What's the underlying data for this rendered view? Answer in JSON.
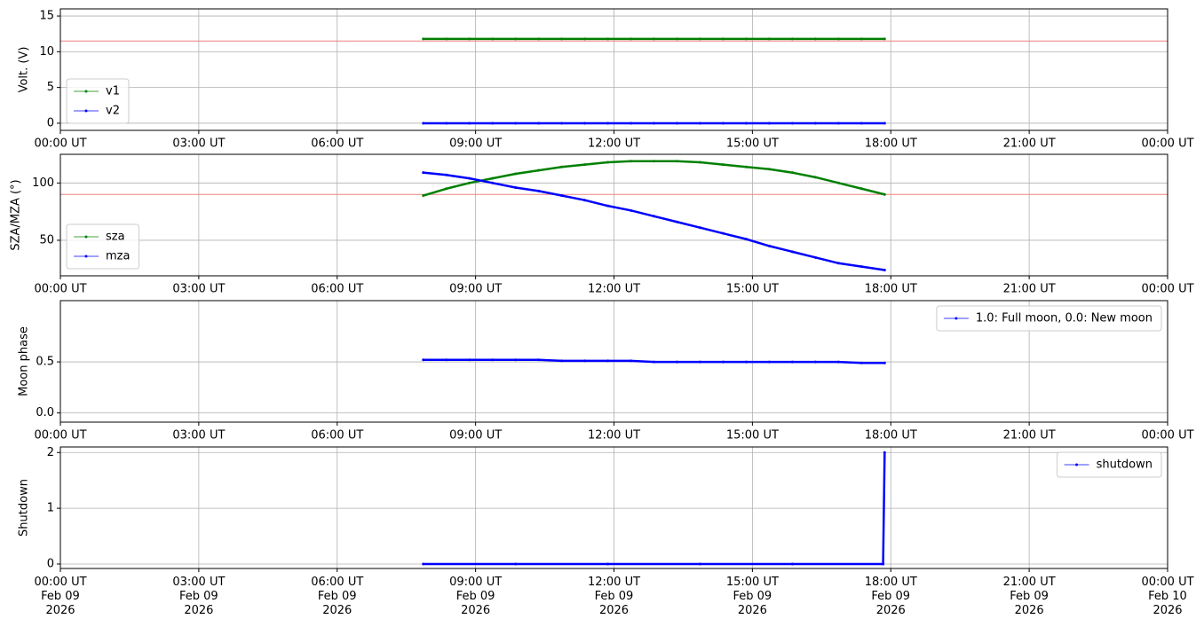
{
  "chart_data": [
    {
      "type": "line",
      "ylabel": "Volt. (V)",
      "x": [
        "2026-02-09T07:52",
        "2026-02-09T08:22",
        "2026-02-09T08:52",
        "2026-02-09T09:22",
        "2026-02-09T09:52",
        "2026-02-09T10:22",
        "2026-02-09T10:52",
        "2026-02-09T11:22",
        "2026-02-09T11:52",
        "2026-02-09T12:22",
        "2026-02-09T12:52",
        "2026-02-09T13:22",
        "2026-02-09T13:52",
        "2026-02-09T14:22",
        "2026-02-09T14:52",
        "2026-02-09T15:22",
        "2026-02-09T15:52",
        "2026-02-09T16:22",
        "2026-02-09T16:52",
        "2026-02-09T17:22",
        "2026-02-09T17:52"
      ],
      "series": [
        {
          "name": "v1",
          "color": "#008000",
          "values": [
            11.8,
            11.8,
            11.8,
            11.8,
            11.8,
            11.8,
            11.8,
            11.8,
            11.8,
            11.8,
            11.8,
            11.8,
            11.8,
            11.8,
            11.8,
            11.8,
            11.8,
            11.8,
            11.8,
            11.8,
            11.8
          ]
        },
        {
          "name": "v2",
          "color": "#0000ff",
          "values": [
            0,
            0,
            0,
            0,
            0,
            0,
            0,
            0,
            0,
            0,
            0,
            0,
            0,
            0,
            0,
            0,
            0,
            0,
            0,
            0,
            0
          ]
        }
      ],
      "hline": 11.5,
      "hline_color": "#f08080",
      "xlim": [
        "2026-02-09T00:00",
        "2026-02-10T00:00"
      ],
      "xticks": [
        {
          "value": "2026-02-09T00:00",
          "label": "00:00 UT"
        },
        {
          "value": "2026-02-09T03:00",
          "label": "03:00 UT"
        },
        {
          "value": "2026-02-09T06:00",
          "label": "06:00 UT"
        },
        {
          "value": "2026-02-09T09:00",
          "label": "09:00 UT"
        },
        {
          "value": "2026-02-09T12:00",
          "label": "12:00 UT"
        },
        {
          "value": "2026-02-09T15:00",
          "label": "15:00 UT"
        },
        {
          "value": "2026-02-09T18:00",
          "label": "18:00 UT"
        },
        {
          "value": "2026-02-09T21:00",
          "label": "21:00 UT"
        },
        {
          "value": "2026-02-10T00:00",
          "label": "00:00 UT"
        }
      ],
      "ylim": [
        -1,
        16
      ],
      "yticks": [
        0,
        5,
        10,
        15
      ],
      "grid": true,
      "legend": "lower left"
    },
    {
      "type": "line",
      "ylabel": "SZA/MZA (°)",
      "x": [
        "2026-02-09T07:52",
        "2026-02-09T08:22",
        "2026-02-09T08:52",
        "2026-02-09T09:22",
        "2026-02-09T09:52",
        "2026-02-09T10:22",
        "2026-02-09T10:52",
        "2026-02-09T11:22",
        "2026-02-09T11:52",
        "2026-02-09T12:22",
        "2026-02-09T12:52",
        "2026-02-09T13:22",
        "2026-02-09T13:52",
        "2026-02-09T14:22",
        "2026-02-09T14:52",
        "2026-02-09T15:22",
        "2026-02-09T15:52",
        "2026-02-09T16:22",
        "2026-02-09T16:52",
        "2026-02-09T17:22",
        "2026-02-09T17:52"
      ],
      "series": [
        {
          "name": "sza",
          "color": "#008000",
          "values": [
            89,
            95,
            100,
            104,
            108,
            111,
            114,
            116,
            118,
            119,
            119,
            119,
            118,
            116,
            114,
            112,
            109,
            105,
            100,
            95,
            90
          ]
        },
        {
          "name": "mza",
          "color": "#0000ff",
          "values": [
            109,
            107,
            104,
            100,
            96,
            93,
            89,
            85,
            80,
            76,
            71,
            66,
            61,
            56,
            51,
            45,
            40,
            35,
            30,
            27,
            24
          ]
        }
      ],
      "hline": 90,
      "hline_color": "#f08080",
      "xlim": [
        "2026-02-09T00:00",
        "2026-02-10T00:00"
      ],
      "xticks": [
        {
          "value": "2026-02-09T00:00",
          "label": "00:00 UT"
        },
        {
          "value": "2026-02-09T03:00",
          "label": "03:00 UT"
        },
        {
          "value": "2026-02-09T06:00",
          "label": "06:00 UT"
        },
        {
          "value": "2026-02-09T09:00",
          "label": "09:00 UT"
        },
        {
          "value": "2026-02-09T12:00",
          "label": "12:00 UT"
        },
        {
          "value": "2026-02-09T15:00",
          "label": "15:00 UT"
        },
        {
          "value": "2026-02-09T18:00",
          "label": "18:00 UT"
        },
        {
          "value": "2026-02-09T21:00",
          "label": "21:00 UT"
        },
        {
          "value": "2026-02-10T00:00",
          "label": "00:00 UT"
        }
      ],
      "ylim": [
        19,
        125
      ],
      "yticks": [
        50,
        100
      ],
      "grid": true,
      "legend": "lower left"
    },
    {
      "type": "line",
      "ylabel": "Moon phase",
      "x": [
        "2026-02-09T07:52",
        "2026-02-09T08:22",
        "2026-02-09T08:52",
        "2026-02-09T09:22",
        "2026-02-09T09:52",
        "2026-02-09T10:22",
        "2026-02-09T10:52",
        "2026-02-09T11:22",
        "2026-02-09T11:52",
        "2026-02-09T12:22",
        "2026-02-09T12:52",
        "2026-02-09T13:22",
        "2026-02-09T13:52",
        "2026-02-09T14:22",
        "2026-02-09T14:52",
        "2026-02-09T15:22",
        "2026-02-09T15:52",
        "2026-02-09T16:22",
        "2026-02-09T16:52",
        "2026-02-09T17:22",
        "2026-02-09T17:52"
      ],
      "series": [
        {
          "name": "1.0: Full moon, 0.0: New moon",
          "color": "#0000ff",
          "values": [
            0.52,
            0.52,
            0.52,
            0.52,
            0.52,
            0.52,
            0.51,
            0.51,
            0.51,
            0.51,
            0.5,
            0.5,
            0.5,
            0.5,
            0.5,
            0.5,
            0.5,
            0.5,
            0.5,
            0.49,
            0.49
          ]
        }
      ],
      "xlim": [
        "2026-02-09T00:00",
        "2026-02-10T00:00"
      ],
      "xticks": [
        {
          "value": "2026-02-09T00:00",
          "label": "00:00 UT"
        },
        {
          "value": "2026-02-09T03:00",
          "label": "03:00 UT"
        },
        {
          "value": "2026-02-09T06:00",
          "label": "06:00 UT"
        },
        {
          "value": "2026-02-09T09:00",
          "label": "09:00 UT"
        },
        {
          "value": "2026-02-09T12:00",
          "label": "12:00 UT"
        },
        {
          "value": "2026-02-09T15:00",
          "label": "15:00 UT"
        },
        {
          "value": "2026-02-09T18:00",
          "label": "18:00 UT"
        },
        {
          "value": "2026-02-09T21:00",
          "label": "21:00 UT"
        },
        {
          "value": "2026-02-10T00:00",
          "label": "00:00 UT"
        }
      ],
      "ylim": [
        -0.09,
        1.1
      ],
      "yticks": [
        {
          "value": 0,
          "label": "0.0"
        },
        {
          "value": 0.5,
          "label": "0.5"
        }
      ],
      "grid": true,
      "legend": "upper right"
    },
    {
      "type": "line",
      "ylabel": "Shutdown",
      "x": [
        "2026-02-09T07:52",
        "2026-02-09T09:52",
        "2026-02-09T11:52",
        "2026-02-09T13:52",
        "2026-02-09T15:52",
        "2026-02-09T17:50",
        "2026-02-09T17:52"
      ],
      "series": [
        {
          "name": "shutdown",
          "color": "#0000ff",
          "values": [
            0,
            0,
            0,
            0,
            0,
            0,
            2
          ]
        }
      ],
      "xlim": [
        "2026-02-09T00:00",
        "2026-02-10T00:00"
      ],
      "xticks": [
        {
          "value": "2026-02-09T00:00",
          "label": "00:00 UT\nFeb 09\n2026"
        },
        {
          "value": "2026-02-09T03:00",
          "label": "03:00 UT\nFeb 09\n2026"
        },
        {
          "value": "2026-02-09T06:00",
          "label": "06:00 UT\nFeb 09\n2026"
        },
        {
          "value": "2026-02-09T09:00",
          "label": "09:00 UT\nFeb 09\n2026"
        },
        {
          "value": "2026-02-09T12:00",
          "label": "12:00 UT\nFeb 09\n2026"
        },
        {
          "value": "2026-02-09T15:00",
          "label": "15:00 UT\nFeb 09\n2026"
        },
        {
          "value": "2026-02-09T18:00",
          "label": "18:00 UT\nFeb 09\n2026"
        },
        {
          "value": "2026-02-09T21:00",
          "label": "21:00 UT\nFeb 09\n2026"
        },
        {
          "value": "2026-02-10T00:00",
          "label": "00:00 UT\nFeb 10\n2026"
        }
      ],
      "ylim": [
        -0.08,
        2.1
      ],
      "yticks": [
        0,
        1,
        2
      ],
      "grid": true,
      "legend": "upper right"
    }
  ]
}
